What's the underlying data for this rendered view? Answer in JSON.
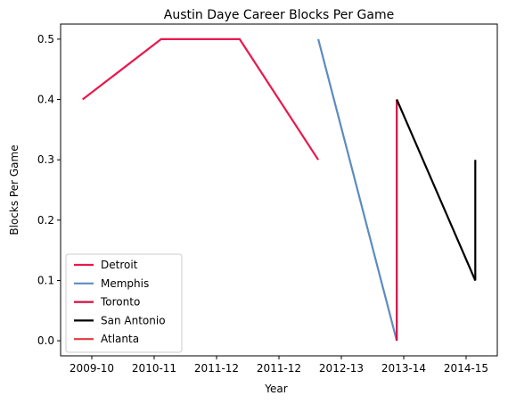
{
  "chart_data": {
    "type": "line",
    "title": "Austin Daye Career Blocks Per Game",
    "xlabel": "Year",
    "ylabel": "Blocks Per Game",
    "x_ticks": [
      "2009-10",
      "2010-11",
      "2011-12",
      "2011-12",
      "2012-13",
      "2013-14",
      "2014-15"
    ],
    "x_range": [
      -0.28,
      5.28
    ],
    "ylim": [
      -0.025,
      0.525
    ],
    "y_ticks": [
      0.0,
      0.1,
      0.2,
      0.3,
      0.4,
      0.5
    ],
    "y_tick_labels": [
      "0.0",
      "0.1",
      "0.2",
      "0.3",
      "0.4",
      "0.5"
    ],
    "legend_position": "lower-left",
    "series": [
      {
        "name": "Detroit",
        "color": "#e8184e",
        "x": [
          0,
          1,
          2,
          3
        ],
        "y": [
          0.4,
          0.5,
          0.5,
          0.3
        ]
      },
      {
        "name": "Memphis",
        "color": "#5d8bbf",
        "x": [
          3,
          4
        ],
        "y": [
          0.5,
          0.0
        ]
      },
      {
        "name": "Toronto",
        "color": "#ce1141",
        "x": [
          4,
          4
        ],
        "y": [
          0.0,
          0.4
        ]
      },
      {
        "name": "San Antonio",
        "color": "#000000",
        "x": [
          4,
          5,
          5
        ],
        "y": [
          0.4,
          0.1,
          0.3
        ]
      },
      {
        "name": "Atlanta",
        "color": "#e03a3e",
        "x": [],
        "y": []
      }
    ]
  }
}
